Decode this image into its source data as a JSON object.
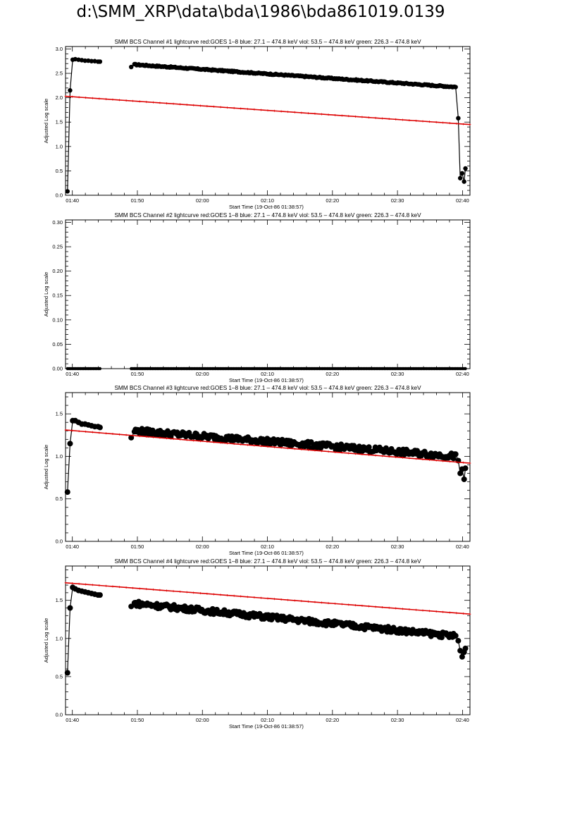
{
  "page_title": "d:\\SMM_XRP\\data\\bda\\1986\\bda861019.0139",
  "colors": {
    "axes": "#000000",
    "goes": "#dd0000",
    "data": "#000000"
  },
  "chart_data": [
    {
      "type": "line",
      "title": "SMM BCS Channel #1 lightcurve  red:GOES 1–8  blue: 27.1 – 474.8 keV  viol: 53.5 – 474.8 keV  green: 226.3 – 474.8 keV",
      "xlabel": "Start Time (19-Oct-86 01:38:57)",
      "ylabel": "Adjusted Log scale",
      "x_ticks": [
        "01:40",
        "01:50",
        "02:00",
        "02:10",
        "02:20",
        "02:30",
        "02:40"
      ],
      "x_tick_minutes": [
        1.05,
        11.05,
        21.05,
        31.05,
        41.05,
        51.05,
        61.05
      ],
      "xlim_minutes": [
        0,
        62.2
      ],
      "y_ticks": [
        "0.0",
        "0.5",
        "1.0",
        "1.5",
        "2.0",
        "2.5",
        "3.0"
      ],
      "y_tick_values": [
        0,
        0.5,
        1.0,
        1.5,
        2.0,
        2.5,
        3.0
      ],
      "ylim": [
        0,
        3.05
      ],
      "series": [
        {
          "color": "#000000",
          "marker": "circle",
          "segments": [
            {
              "x": [
                0.3,
                0.7,
                1.1,
                1.5,
                2.0,
                2.5,
                3.0,
                3.5,
                4.0,
                4.5,
                5.0,
                5.3
              ],
              "y": [
                0.08,
                2.15,
                2.78,
                2.79,
                2.78,
                2.77,
                2.76,
                2.76,
                2.75,
                2.75,
                2.74,
                2.74
              ]
            },
            {
              "x": [
                10.1,
                10.6,
                60.0,
                60.4,
                60.7,
                61.0,
                61.3,
                61.5
              ],
              "y": [
                2.63,
                2.68,
                2.22,
                1.58,
                0.35,
                0.45,
                0.28,
                0.55
              ]
            }
          ]
        },
        {
          "color": "#dd0000",
          "marker": "plus",
          "x": [
            0,
            62.2
          ],
          "y": [
            2.03,
            1.45
          ]
        }
      ]
    },
    {
      "type": "line",
      "title": "SMM BCS Channel #2 lightcurve  red:GOES 1–8  blue: 27.1 – 474.8 keV  viol: 53.5 – 474.8 keV  green: 226.3 – 474.8 keV",
      "xlabel": "Start Time (19-Oct-86 01:38:57)",
      "ylabel": "Adjusted Log scale",
      "x_ticks": [
        "01:40",
        "01:50",
        "02:00",
        "02:10",
        "02:20",
        "02:30",
        "02:40"
      ],
      "x_tick_minutes": [
        1.05,
        11.05,
        21.05,
        31.05,
        41.05,
        51.05,
        61.05
      ],
      "xlim_minutes": [
        0,
        62.2
      ],
      "y_ticks": [
        "0.00",
        "0.05",
        "0.10",
        "0.15",
        "0.20",
        "0.25",
        "0.30"
      ],
      "y_tick_values": [
        0,
        0.05,
        0.1,
        0.15,
        0.2,
        0.25,
        0.3
      ],
      "ylim": [
        0,
        0.305
      ],
      "series": [
        {
          "color": "#000000",
          "marker": "circle",
          "segments": [
            {
              "x": [
                0.3,
                5.3
              ],
              "y": [
                0.0,
                0.0
              ]
            },
            {
              "x": [
                10.1,
                61.5
              ],
              "y": [
                0.0,
                0.0
              ]
            }
          ]
        }
      ]
    },
    {
      "type": "line",
      "title": "SMM BCS Channel #3 lightcurve  red:GOES 1–8  blue: 27.1 – 474.8 keV  viol: 53.5 – 474.8 keV  green: 226.3 – 474.8 keV",
      "xlabel": "Start Time (19-Oct-86 01:38:57)",
      "ylabel": "Adjusted Log scale",
      "x_ticks": [
        "01:40",
        "01:50",
        "02:00",
        "02:10",
        "02:20",
        "02:30",
        "02:40"
      ],
      "x_tick_minutes": [
        1.05,
        11.05,
        21.05,
        31.05,
        41.05,
        51.05,
        61.05
      ],
      "xlim_minutes": [
        0,
        62.2
      ],
      "y_ticks": [
        "0.0",
        "0.5",
        "1.0",
        "1.5"
      ],
      "y_tick_values": [
        0,
        0.5,
        1.0,
        1.5
      ],
      "ylim": [
        0,
        1.75
      ],
      "series": [
        {
          "color": "#000000",
          "marker": "circle",
          "segments": [
            {
              "x": [
                0.3,
                0.7,
                1.1,
                1.5,
                2.0,
                2.5,
                3.0,
                3.5,
                4.0,
                4.5,
                5.0,
                5.3
              ],
              "y": [
                0.58,
                1.15,
                1.42,
                1.42,
                1.4,
                1.38,
                1.38,
                1.37,
                1.36,
                1.35,
                1.35,
                1.34
              ]
            },
            {
              "x": [
                10.1,
                10.6,
                60.0,
                60.4,
                60.7,
                61.0,
                61.3,
                61.5
              ],
              "y": [
                1.22,
                1.3,
                1.0,
                0.95,
                0.8,
                0.85,
                0.73,
                0.86
              ]
            }
          ]
        },
        {
          "color": "#dd0000",
          "marker": "plus",
          "x": [
            0,
            62.2
          ],
          "y": [
            1.31,
            0.92
          ]
        }
      ]
    },
    {
      "type": "line",
      "title": "SMM BCS Channel #4 lightcurve  red:GOES 1–8  blue: 27.1 – 474.8 keV  viol: 53.5 – 474.8 keV  green: 226.3 – 474.8 keV",
      "xlabel": "Start Time (19-Oct-86 01:38:57)",
      "ylabel": "Adjusted Log scale",
      "x_ticks": [
        "01:40",
        "01:50",
        "02:00",
        "02:10",
        "02:20",
        "02:30",
        "02:40"
      ],
      "x_tick_minutes": [
        1.05,
        11.05,
        21.05,
        31.05,
        41.05,
        51.05,
        61.05
      ],
      "xlim_minutes": [
        0,
        62.2
      ],
      "y_ticks": [
        "0.0",
        "0.5",
        "1.0",
        "1.5"
      ],
      "y_tick_values": [
        0,
        0.5,
        1.0,
        1.5
      ],
      "ylim": [
        0,
        1.95
      ],
      "series": [
        {
          "color": "#000000",
          "marker": "circle",
          "segments": [
            {
              "x": [
                0.3,
                0.7,
                1.1,
                1.5,
                2.0,
                2.5,
                3.0,
                3.5,
                4.0,
                4.5,
                5.0,
                5.3
              ],
              "y": [
                0.55,
                1.4,
                1.67,
                1.65,
                1.63,
                1.62,
                1.61,
                1.6,
                1.59,
                1.58,
                1.57,
                1.57
              ]
            },
            {
              "x": [
                10.1,
                10.6,
                60.0,
                60.4,
                60.7,
                61.0,
                61.3,
                61.5
              ],
              "y": [
                1.42,
                1.46,
                1.03,
                0.97,
                0.84,
                0.76,
                0.82,
                0.87
              ]
            }
          ]
        },
        {
          "color": "#dd0000",
          "marker": "plus",
          "x": [
            0,
            62.2
          ],
          "y": [
            1.73,
            1.32
          ]
        }
      ]
    }
  ]
}
